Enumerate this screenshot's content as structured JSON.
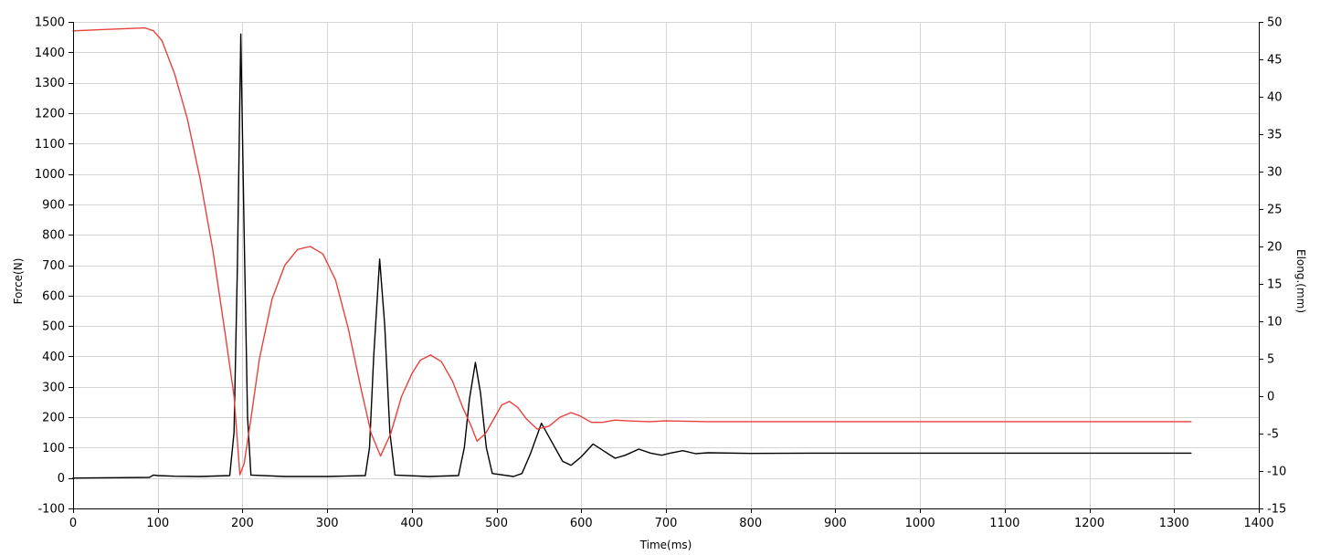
{
  "chart_data": {
    "type": "line",
    "xlabel": "Time(ms)",
    "ylabel": "Force(N)",
    "y2label": "Elong.(mm)",
    "xlim": [
      0,
      1400
    ],
    "ylim": [
      -100,
      1500
    ],
    "y2lim": [
      -15,
      50
    ],
    "grid": true,
    "x_ticks": [
      0,
      100,
      200,
      300,
      400,
      500,
      600,
      700,
      800,
      900,
      1000,
      1100,
      1200,
      1300,
      1400
    ],
    "y_ticks": [
      -100,
      0,
      100,
      200,
      300,
      400,
      500,
      600,
      700,
      800,
      900,
      1000,
      1100,
      1200,
      1300,
      1400,
      1500
    ],
    "y2_ticks": [
      -15,
      -10,
      -5,
      0,
      5,
      10,
      15,
      20,
      25,
      30,
      35,
      40,
      45,
      50
    ],
    "colors": {
      "elongation": "#e8413c",
      "force": "#000000",
      "grid": "#d4d4d4",
      "axis": "#000000"
    },
    "series": [
      {
        "axis": "left",
        "color": "#000000",
        "points": [
          [
            0,
            0
          ],
          [
            90,
            2
          ],
          [
            95,
            10
          ],
          [
            100,
            8
          ],
          [
            120,
            6
          ],
          [
            150,
            5
          ],
          [
            185,
            8
          ],
          [
            190,
            150
          ],
          [
            194,
            700
          ],
          [
            198,
            1460
          ],
          [
            202,
            800
          ],
          [
            206,
            200
          ],
          [
            210,
            10
          ],
          [
            250,
            5
          ],
          [
            300,
            5
          ],
          [
            345,
            8
          ],
          [
            350,
            100
          ],
          [
            355,
            400
          ],
          [
            362,
            720
          ],
          [
            368,
            500
          ],
          [
            374,
            150
          ],
          [
            380,
            10
          ],
          [
            420,
            5
          ],
          [
            455,
            8
          ],
          [
            462,
            100
          ],
          [
            468,
            260
          ],
          [
            475,
            380
          ],
          [
            481,
            280
          ],
          [
            488,
            100
          ],
          [
            495,
            15
          ],
          [
            520,
            5
          ],
          [
            530,
            15
          ],
          [
            540,
            80
          ],
          [
            553,
            180
          ],
          [
            565,
            120
          ],
          [
            578,
            55
          ],
          [
            588,
            42
          ],
          [
            600,
            70
          ],
          [
            614,
            112
          ],
          [
            626,
            90
          ],
          [
            640,
            65
          ],
          [
            652,
            75
          ],
          [
            668,
            95
          ],
          [
            682,
            82
          ],
          [
            695,
            75
          ],
          [
            705,
            82
          ],
          [
            720,
            90
          ],
          [
            735,
            80
          ],
          [
            750,
            83
          ],
          [
            800,
            81
          ],
          [
            900,
            82
          ],
          [
            1000,
            82
          ],
          [
            1100,
            82
          ],
          [
            1200,
            82
          ],
          [
            1320,
            82
          ]
        ]
      },
      {
        "axis": "right",
        "color": "#e8413c",
        "points": [
          [
            0,
            48.8
          ],
          [
            40,
            49.0
          ],
          [
            85,
            49.2
          ],
          [
            95,
            48.8
          ],
          [
            105,
            47.5
          ],
          [
            120,
            43
          ],
          [
            135,
            37
          ],
          [
            150,
            29
          ],
          [
            165,
            19.5
          ],
          [
            180,
            8
          ],
          [
            190,
            0
          ],
          [
            197,
            -10.5
          ],
          [
            202,
            -9
          ],
          [
            210,
            -3
          ],
          [
            220,
            5
          ],
          [
            235,
            13
          ],
          [
            250,
            17.5
          ],
          [
            265,
            19.6
          ],
          [
            280,
            20
          ],
          [
            295,
            19
          ],
          [
            310,
            15.5
          ],
          [
            325,
            9
          ],
          [
            340,
            1
          ],
          [
            352,
            -5
          ],
          [
            363,
            -8
          ],
          [
            375,
            -5
          ],
          [
            388,
            0
          ],
          [
            400,
            3
          ],
          [
            410,
            4.8
          ],
          [
            422,
            5.5
          ],
          [
            435,
            4.6
          ],
          [
            448,
            2
          ],
          [
            460,
            -1.5
          ],
          [
            470,
            -4
          ],
          [
            477,
            -6
          ],
          [
            487,
            -5
          ],
          [
            497,
            -3
          ],
          [
            506,
            -1.2
          ],
          [
            515,
            -0.7
          ],
          [
            525,
            -1.5
          ],
          [
            535,
            -3
          ],
          [
            548,
            -4.4
          ],
          [
            562,
            -4
          ],
          [
            575,
            -2.8
          ],
          [
            588,
            -2.2
          ],
          [
            598,
            -2.6
          ],
          [
            612,
            -3.5
          ],
          [
            625,
            -3.5
          ],
          [
            640,
            -3.2
          ],
          [
            655,
            -3.3
          ],
          [
            680,
            -3.4
          ],
          [
            700,
            -3.3
          ],
          [
            750,
            -3.4
          ],
          [
            800,
            -3.4
          ],
          [
            900,
            -3.4
          ],
          [
            1000,
            -3.4
          ],
          [
            1100,
            -3.4
          ],
          [
            1200,
            -3.4
          ],
          [
            1320,
            -3.4
          ]
        ]
      }
    ]
  }
}
